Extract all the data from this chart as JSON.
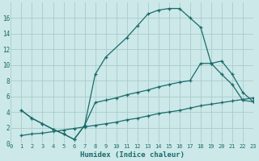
{
  "xlabel": "Humidex (Indice chaleur)",
  "bg_color": "#cce8e8",
  "grid_color": "#aacccc",
  "line_color": "#1a6b6b",
  "xlim": [
    0,
    23
  ],
  "ylim": [
    0,
    18
  ],
  "xticks": [
    0,
    1,
    2,
    3,
    4,
    5,
    6,
    7,
    8,
    9,
    10,
    11,
    12,
    13,
    14,
    15,
    16,
    17,
    18,
    19,
    20,
    21,
    22,
    23
  ],
  "yticks": [
    0,
    2,
    4,
    6,
    8,
    10,
    12,
    14,
    16
  ],
  "line1_x": [
    1,
    2,
    3,
    4,
    5,
    6,
    7,
    8,
    9,
    11,
    12,
    13,
    14,
    15,
    16,
    17,
    18,
    19,
    20,
    21,
    22,
    23
  ],
  "line1_y": [
    4.2,
    3.2,
    2.5,
    1.8,
    1.2,
    0.5,
    2.3,
    8.8,
    11.0,
    13.5,
    15.0,
    16.5,
    17.0,
    17.2,
    17.2,
    16.0,
    14.8,
    10.2,
    10.5,
    8.8,
    6.5,
    5.3
  ],
  "line2_x": [
    1,
    2,
    3,
    4,
    5,
    6,
    7,
    8,
    9,
    10,
    11,
    12,
    13,
    14,
    15,
    16,
    17,
    18,
    19,
    20,
    21,
    22,
    23
  ],
  "line2_y": [
    4.2,
    3.2,
    2.5,
    1.8,
    1.2,
    0.5,
    2.3,
    5.2,
    5.5,
    5.8,
    6.2,
    6.5,
    6.8,
    7.2,
    7.5,
    7.8,
    8.0,
    10.2,
    10.2,
    8.8,
    7.5,
    5.5,
    5.3
  ],
  "line3_x": [
    1,
    2,
    3,
    4,
    5,
    6,
    7,
    8,
    9,
    10,
    11,
    12,
    13,
    14,
    15,
    16,
    17,
    18,
    19,
    20,
    21,
    22,
    23
  ],
  "line3_y": [
    1.0,
    1.2,
    1.3,
    1.5,
    1.7,
    1.9,
    2.1,
    2.3,
    2.5,
    2.7,
    3.0,
    3.2,
    3.5,
    3.8,
    4.0,
    4.2,
    4.5,
    4.8,
    5.0,
    5.2,
    5.4,
    5.6,
    5.8
  ]
}
